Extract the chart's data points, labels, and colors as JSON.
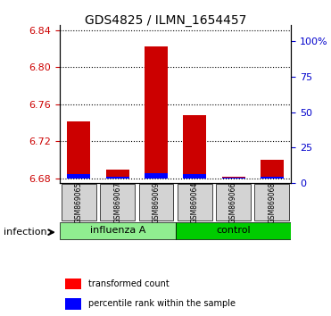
{
  "title": "GDS4825 / ILMN_1654457",
  "samples": [
    "GSM869065",
    "GSM869067",
    "GSM869069",
    "GSM869064",
    "GSM869066",
    "GSM869068"
  ],
  "groups": [
    "influenza A",
    "influenza A",
    "influenza A",
    "control",
    "control",
    "control"
  ],
  "group_labels": [
    "influenza A",
    "control"
  ],
  "group_colors": [
    "#90EE90",
    "#00CC00"
  ],
  "bar_base": 6.68,
  "red_values": [
    6.742,
    6.69,
    6.822,
    6.748,
    6.682,
    6.7
  ],
  "blue_values": [
    6.685,
    6.682,
    6.686,
    6.685,
    6.681,
    6.682
  ],
  "ylim_left": [
    6.675,
    6.845
  ],
  "yticks_left": [
    6.68,
    6.72,
    6.76,
    6.8,
    6.84
  ],
  "yticks_right": [
    0,
    25,
    50,
    75,
    100
  ],
  "ylim_right": [
    0,
    111
  ],
  "left_color": "#CC0000",
  "right_color": "#0000CC",
  "bg_color": "#FFFFFF",
  "plot_bg": "#FFFFFF",
  "grid_color": "#000000",
  "infection_label": "infection",
  "legend_red": "transformed count",
  "legend_blue": "percentile rank within the sample",
  "bar_width": 0.6,
  "sample_bg_color": "#D3D3D3"
}
